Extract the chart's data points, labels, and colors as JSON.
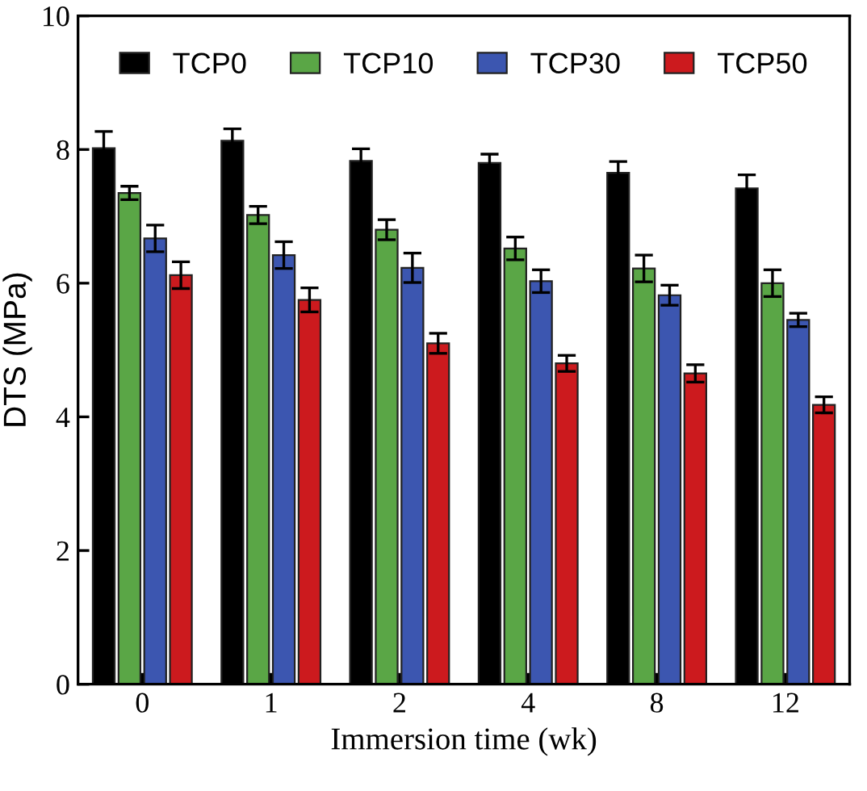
{
  "chart_data": {
    "type": "bar",
    "xlabel": "Immersion time (wk)",
    "ylabel": "DTS (MPa)",
    "categories": [
      "0",
      "1",
      "2",
      "4",
      "8",
      "12"
    ],
    "series": [
      {
        "name": "TCP0",
        "color": "#000000",
        "values": [
          8.02,
          8.13,
          7.83,
          7.8,
          7.65,
          7.42
        ],
        "errors": [
          0.25,
          0.18,
          0.18,
          0.13,
          0.17,
          0.2
        ]
      },
      {
        "name": "TCP10",
        "color": "#5aa646",
        "values": [
          7.35,
          7.02,
          6.8,
          6.52,
          6.22,
          6.0
        ],
        "errors": [
          0.1,
          0.13,
          0.15,
          0.17,
          0.2,
          0.2
        ]
      },
      {
        "name": "TCP30",
        "color": "#3c56b0",
        "values": [
          6.67,
          6.42,
          6.23,
          6.03,
          5.82,
          5.45
        ],
        "errors": [
          0.2,
          0.2,
          0.22,
          0.17,
          0.15,
          0.1
        ]
      },
      {
        "name": "TCP50",
        "color": "#cc1a1e",
        "values": [
          6.12,
          5.75,
          5.1,
          4.8,
          4.65,
          4.18
        ],
        "errors": [
          0.2,
          0.18,
          0.15,
          0.12,
          0.13,
          0.12
        ]
      }
    ],
    "ylim": [
      0,
      10
    ],
    "yticks": [
      0,
      2,
      4,
      6,
      8,
      10
    ],
    "grid": false,
    "legend": "top"
  }
}
